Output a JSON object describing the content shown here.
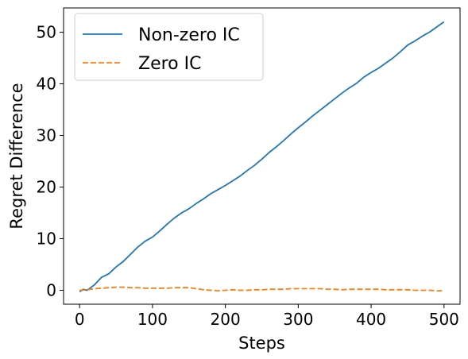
{
  "chart_data": {
    "type": "line",
    "xlabel": "Steps",
    "ylabel": "Regret Difference",
    "xlim": [
      -22,
      522
    ],
    "ylim": [
      -2.7,
      54.7
    ],
    "xticks": [
      0,
      100,
      200,
      300,
      400,
      500
    ],
    "yticks": [
      0,
      10,
      20,
      30,
      40,
      50
    ],
    "grid": false,
    "legend": "top-left",
    "series": [
      {
        "name": "Non-zero IC",
        "color": "#1f77b4",
        "style": "solid",
        "x": [
          0,
          5,
          10,
          20,
          30,
          40,
          50,
          60,
          70,
          80,
          90,
          100,
          110,
          120,
          130,
          140,
          150,
          160,
          170,
          180,
          190,
          200,
          210,
          220,
          230,
          240,
          250,
          260,
          270,
          280,
          290,
          300,
          310,
          320,
          330,
          340,
          350,
          360,
          370,
          380,
          390,
          400,
          410,
          420,
          430,
          440,
          450,
          460,
          470,
          480,
          490,
          500
        ],
        "y": [
          -0.3,
          0.2,
          0.0,
          1.0,
          2.5,
          3.2,
          4.5,
          5.6,
          7.0,
          8.4,
          9.5,
          10.3,
          11.5,
          12.8,
          14.0,
          15.0,
          15.8,
          16.8,
          17.7,
          18.7,
          19.5,
          20.3,
          21.2,
          22.1,
          23.2,
          24.2,
          25.4,
          26.7,
          27.8,
          29.0,
          30.3,
          31.5,
          32.6,
          33.8,
          34.9,
          36.0,
          37.1,
          38.2,
          39.2,
          40.1,
          41.3,
          42.2,
          43.0,
          44.0,
          45.0,
          46.2,
          47.5,
          48.3,
          49.2,
          50.0,
          51.0,
          52.0
        ]
      },
      {
        "name": "Zero IC",
        "color": "#ff7f0e",
        "style": "dashed",
        "x": [
          0,
          10,
          20,
          30,
          40,
          50,
          60,
          70,
          80,
          90,
          100,
          110,
          120,
          130,
          140,
          150,
          160,
          170,
          180,
          190,
          200,
          210,
          220,
          230,
          240,
          250,
          260,
          270,
          280,
          290,
          300,
          310,
          320,
          330,
          340,
          350,
          360,
          370,
          380,
          390,
          400,
          410,
          420,
          430,
          440,
          450,
          460,
          470,
          480,
          490,
          500
        ],
        "y": [
          0.0,
          0.1,
          0.3,
          0.4,
          0.5,
          0.6,
          0.6,
          0.5,
          0.5,
          0.4,
          0.4,
          0.4,
          0.4,
          0.5,
          0.5,
          0.5,
          0.3,
          0.1,
          0.0,
          -0.1,
          0.0,
          0.1,
          0.0,
          0.0,
          0.1,
          0.1,
          0.2,
          0.2,
          0.2,
          0.3,
          0.3,
          0.3,
          0.3,
          0.3,
          0.2,
          0.2,
          0.1,
          0.2,
          0.2,
          0.2,
          0.2,
          0.2,
          0.1,
          0.1,
          0.1,
          0.1,
          0.0,
          0.0,
          0.0,
          -0.1,
          -0.1
        ]
      }
    ]
  }
}
